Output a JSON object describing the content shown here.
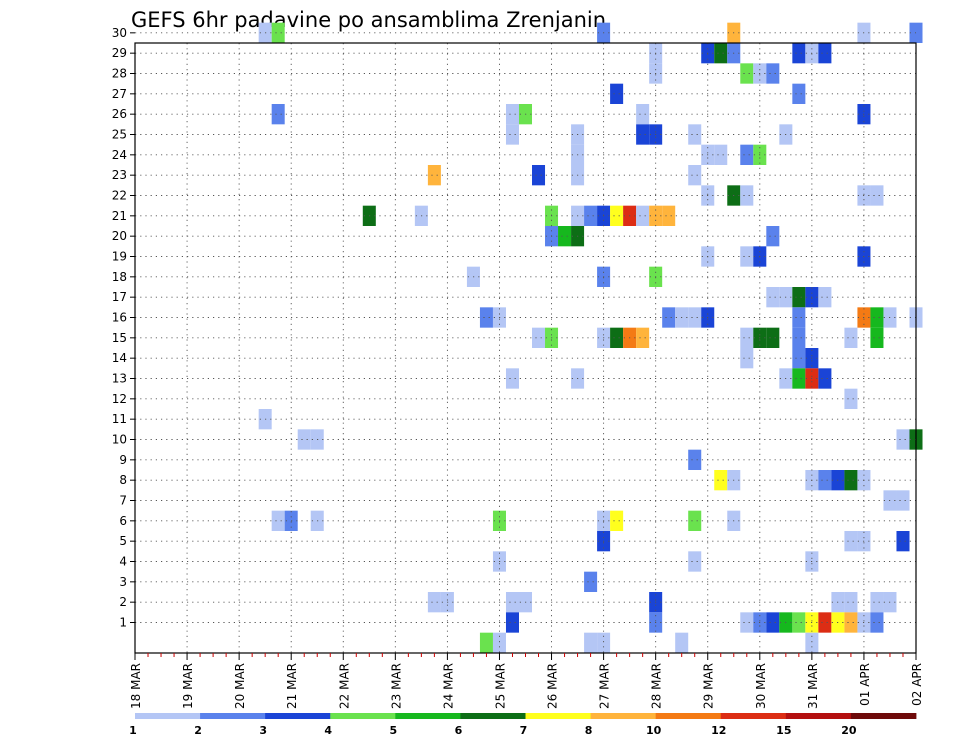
{
  "chart_data": {
    "type": "heatmap",
    "title": "GEFS 6hr padavine po ansamblima Zrenjanin",
    "xlabel": "",
    "ylabel": "",
    "x_ticks": [
      "18 MAR",
      "19 MAR",
      "20 MAR",
      "21 MAR",
      "22 MAR",
      "23 MAR",
      "24 MAR",
      "25 MAR",
      "26 MAR",
      "27 MAR",
      "28 MAR",
      "29 MAR",
      "30 MAR",
      "31 MAR",
      "01 APR",
      "02 APR"
    ],
    "y_ticks": [
      "1",
      "2",
      "3",
      "4",
      "5",
      "6",
      "7",
      "8",
      "9",
      "10",
      "11",
      "12",
      "13",
      "14",
      "15",
      "16",
      "17",
      "18",
      "19",
      "20",
      "21",
      "22",
      "23",
      "24",
      "25",
      "26",
      "27",
      "28",
      "29",
      "30"
    ],
    "time_step_hours": 6,
    "grid": true,
    "legend_placement": "bottom",
    "legend": {
      "labels": [
        "1",
        "2",
        "3",
        "4",
        "5",
        "6",
        "7",
        "8",
        "10",
        "12",
        "15",
        "20"
      ],
      "colors": [
        "#b4c6f5",
        "#5a82ec",
        "#1a44d6",
        "#6ae24e",
        "#16b81e",
        "#0d6e16",
        "#ffff1e",
        "#ffb43c",
        "#f47a14",
        "#dc2d14",
        "#b40f0f",
        "#6e0a0a"
      ]
    },
    "cells": [
      {
        "member": 30,
        "x": "20 MAR 12",
        "class": 0
      },
      {
        "member": 30,
        "x": "20 MAR 18",
        "class": 3
      },
      {
        "member": 30,
        "x": "27 MAR 00",
        "class": 1
      },
      {
        "member": 30,
        "x": "29 MAR 12",
        "class": 7
      },
      {
        "member": 30,
        "x": "01 APR 00",
        "class": 0
      },
      {
        "member": 30,
        "x": "02 APR 00",
        "class": 1
      },
      {
        "member": 29,
        "x": "28 MAR 00",
        "class": 0
      },
      {
        "member": 29,
        "x": "29 MAR 00",
        "class": 2
      },
      {
        "member": 29,
        "x": "29 MAR 06",
        "class": 5
      },
      {
        "member": 29,
        "x": "29 MAR 12",
        "class": 1
      },
      {
        "member": 29,
        "x": "30 MAR 18",
        "class": 2
      },
      {
        "member": 29,
        "x": "31 MAR 00",
        "class": 0
      },
      {
        "member": 29,
        "x": "31 MAR 06",
        "class": 2
      },
      {
        "member": 28,
        "x": "28 MAR 00",
        "class": 0
      },
      {
        "member": 28,
        "x": "29 MAR 18",
        "class": 3
      },
      {
        "member": 28,
        "x": "30 MAR 00",
        "class": 0
      },
      {
        "member": 28,
        "x": "30 MAR 06",
        "class": 1
      },
      {
        "member": 27,
        "x": "27 MAR 06",
        "class": 2
      },
      {
        "member": 27,
        "x": "30 MAR 18",
        "class": 1
      },
      {
        "member": 26,
        "x": "20 MAR 18",
        "class": 1
      },
      {
        "member": 26,
        "x": "25 MAR 06",
        "class": 0
      },
      {
        "member": 26,
        "x": "25 MAR 12",
        "class": 3
      },
      {
        "member": 26,
        "x": "27 MAR 18",
        "class": 0
      },
      {
        "member": 26,
        "x": "01 APR 00",
        "class": 2
      },
      {
        "member": 25,
        "x": "25 MAR 06",
        "class": 0
      },
      {
        "member": 25,
        "x": "26 MAR 12",
        "class": 0
      },
      {
        "member": 25,
        "x": "27 MAR 18",
        "class": 2
      },
      {
        "member": 25,
        "x": "28 MAR 00",
        "class": 2
      },
      {
        "member": 25,
        "x": "28 MAR 18",
        "class": 0
      },
      {
        "member": 25,
        "x": "30 MAR 12",
        "class": 0
      },
      {
        "member": 24,
        "x": "26 MAR 12",
        "class": 0
      },
      {
        "member": 24,
        "x": "29 MAR 00",
        "class": 0
      },
      {
        "member": 24,
        "x": "29 MAR 06",
        "class": 0
      },
      {
        "member": 24,
        "x": "29 MAR 18",
        "class": 1
      },
      {
        "member": 24,
        "x": "30 MAR 00",
        "class": 3
      },
      {
        "member": 23,
        "x": "23 MAR 18",
        "class": 7
      },
      {
        "member": 23,
        "x": "25 MAR 18",
        "class": 2
      },
      {
        "member": 23,
        "x": "26 MAR 12",
        "class": 0
      },
      {
        "member": 23,
        "x": "28 MAR 18",
        "class": 0
      },
      {
        "member": 22,
        "x": "29 MAR 00",
        "class": 0
      },
      {
        "member": 22,
        "x": "29 MAR 12",
        "class": 5
      },
      {
        "member": 22,
        "x": "29 MAR 18",
        "class": 0
      },
      {
        "member": 22,
        "x": "01 APR 00",
        "class": 0
      },
      {
        "member": 22,
        "x": "01 APR 06",
        "class": 0
      },
      {
        "member": 21,
        "x": "22 MAR 12",
        "class": 5
      },
      {
        "member": 21,
        "x": "23 MAR 12",
        "class": 0
      },
      {
        "member": 21,
        "x": "26 MAR 00",
        "class": 3
      },
      {
        "member": 21,
        "x": "26 MAR 12",
        "class": 0
      },
      {
        "member": 21,
        "x": "26 MAR 18",
        "class": 1
      },
      {
        "member": 21,
        "x": "27 MAR 00",
        "class": 2
      },
      {
        "member": 21,
        "x": "27 MAR 06",
        "class": 6
      },
      {
        "member": 21,
        "x": "27 MAR 12",
        "class": 9
      },
      {
        "member": 21,
        "x": "27 MAR 18",
        "class": 0
      },
      {
        "member": 21,
        "x": "28 MAR 00",
        "class": 7
      },
      {
        "member": 21,
        "x": "28 MAR 06",
        "class": 7
      },
      {
        "member": 20,
        "x": "26 MAR 00",
        "class": 1
      },
      {
        "member": 20,
        "x": "26 MAR 06",
        "class": 4
      },
      {
        "member": 20,
        "x": "26 MAR 12",
        "class": 5
      },
      {
        "member": 20,
        "x": "30 MAR 06",
        "class": 1
      },
      {
        "member": 19,
        "x": "29 MAR 00",
        "class": 0
      },
      {
        "member": 19,
        "x": "29 MAR 18",
        "class": 0
      },
      {
        "member": 19,
        "x": "30 MAR 00",
        "class": 2
      },
      {
        "member": 19,
        "x": "01 APR 00",
        "class": 2
      },
      {
        "member": 18,
        "x": "24 MAR 12",
        "class": 0
      },
      {
        "member": 18,
        "x": "27 MAR 00",
        "class": 1
      },
      {
        "member": 18,
        "x": "28 MAR 00",
        "class": 3
      },
      {
        "member": 17,
        "x": "30 MAR 06",
        "class": 0
      },
      {
        "member": 17,
        "x": "30 MAR 12",
        "class": 0
      },
      {
        "member": 17,
        "x": "30 MAR 18",
        "class": 5
      },
      {
        "member": 17,
        "x": "31 MAR 00",
        "class": 2
      },
      {
        "member": 17,
        "x": "31 MAR 06",
        "class": 0
      },
      {
        "member": 16,
        "x": "24 MAR 18",
        "class": 1
      },
      {
        "member": 16,
        "x": "25 MAR 00",
        "class": 0
      },
      {
        "member": 16,
        "x": "28 MAR 06",
        "class": 1
      },
      {
        "member": 16,
        "x": "28 MAR 12",
        "class": 0
      },
      {
        "member": 16,
        "x": "28 MAR 18",
        "class": 0
      },
      {
        "member": 16,
        "x": "29 MAR 00",
        "class": 2
      },
      {
        "member": 16,
        "x": "30 MAR 18",
        "class": 1
      },
      {
        "member": 16,
        "x": "01 APR 00",
        "class": 8
      },
      {
        "member": 16,
        "x": "01 APR 06",
        "class": 4
      },
      {
        "member": 16,
        "x": "01 APR 12",
        "class": 0
      },
      {
        "member": 16,
        "x": "02 APR 00",
        "class": 0
      },
      {
        "member": 15,
        "x": "25 MAR 18",
        "class": 0
      },
      {
        "member": 15,
        "x": "26 MAR 00",
        "class": 3
      },
      {
        "member": 15,
        "x": "27 MAR 00",
        "class": 0
      },
      {
        "member": 15,
        "x": "27 MAR 06",
        "class": 5
      },
      {
        "member": 15,
        "x": "27 MAR 12",
        "class": 8
      },
      {
        "member": 15,
        "x": "27 MAR 18",
        "class": 7
      },
      {
        "member": 15,
        "x": "29 MAR 18",
        "class": 0
      },
      {
        "member": 15,
        "x": "30 MAR 00",
        "class": 5
      },
      {
        "member": 15,
        "x": "30 MAR 06",
        "class": 5
      },
      {
        "member": 15,
        "x": "30 MAR 18",
        "class": 1
      },
      {
        "member": 15,
        "x": "31 MAR 18",
        "class": 0
      },
      {
        "member": 15,
        "x": "01 APR 06",
        "class": 4
      },
      {
        "member": 14,
        "x": "29 MAR 18",
        "class": 0
      },
      {
        "member": 14,
        "x": "30 MAR 18",
        "class": 1
      },
      {
        "member": 14,
        "x": "31 MAR 00",
        "class": 2
      },
      {
        "member": 13,
        "x": "25 MAR 06",
        "class": 0
      },
      {
        "member": 13,
        "x": "26 MAR 12",
        "class": 0
      },
      {
        "member": 13,
        "x": "30 MAR 12",
        "class": 0
      },
      {
        "member": 13,
        "x": "30 MAR 18",
        "class": 4
      },
      {
        "member": 13,
        "x": "31 MAR 00",
        "class": 9
      },
      {
        "member": 13,
        "x": "31 MAR 06",
        "class": 2
      },
      {
        "member": 12,
        "x": "31 MAR 18",
        "class": 0
      },
      {
        "member": 11,
        "x": "20 MAR 12",
        "class": 0
      },
      {
        "member": 10,
        "x": "21 MAR 06",
        "class": 0
      },
      {
        "member": 10,
        "x": "21 MAR 12",
        "class": 0
      },
      {
        "member": 10,
        "x": "01 APR 18",
        "class": 0
      },
      {
        "member": 10,
        "x": "02 APR 00",
        "class": 5
      },
      {
        "member": 9,
        "x": "28 MAR 18",
        "class": 1
      },
      {
        "member": 8,
        "x": "29 MAR 06",
        "class": 6
      },
      {
        "member": 8,
        "x": "29 MAR 12",
        "class": 0
      },
      {
        "member": 8,
        "x": "31 MAR 00",
        "class": 0
      },
      {
        "member": 8,
        "x": "31 MAR 06",
        "class": 1
      },
      {
        "member": 8,
        "x": "31 MAR 12",
        "class": 2
      },
      {
        "member": 8,
        "x": "31 MAR 18",
        "class": 5
      },
      {
        "member": 8,
        "x": "01 APR 00",
        "class": 0
      },
      {
        "member": 7,
        "x": "01 APR 12",
        "class": 0
      },
      {
        "member": 7,
        "x": "01 APR 18",
        "class": 0
      },
      {
        "member": 6,
        "x": "20 MAR 18",
        "class": 0
      },
      {
        "member": 6,
        "x": "21 MAR 00",
        "class": 1
      },
      {
        "member": 6,
        "x": "21 MAR 12",
        "class": 0
      },
      {
        "member": 6,
        "x": "25 MAR 00",
        "class": 3
      },
      {
        "member": 6,
        "x": "27 MAR 00",
        "class": 0
      },
      {
        "member": 6,
        "x": "27 MAR 06",
        "class": 6
      },
      {
        "member": 6,
        "x": "28 MAR 18",
        "class": 3
      },
      {
        "member": 6,
        "x": "29 MAR 12",
        "class": 0
      },
      {
        "member": 5,
        "x": "27 MAR 00",
        "class": 2
      },
      {
        "member": 5,
        "x": "31 MAR 18",
        "class": 0
      },
      {
        "member": 5,
        "x": "01 APR 00",
        "class": 0
      },
      {
        "member": 5,
        "x": "01 APR 18",
        "class": 2
      },
      {
        "member": 4,
        "x": "25 MAR 00",
        "class": 0
      },
      {
        "member": 4,
        "x": "28 MAR 18",
        "class": 0
      },
      {
        "member": 4,
        "x": "31 MAR 00",
        "class": 0
      },
      {
        "member": 3,
        "x": "26 MAR 18",
        "class": 1
      },
      {
        "member": 2,
        "x": "23 MAR 18",
        "class": 0
      },
      {
        "member": 2,
        "x": "24 MAR 00",
        "class": 0
      },
      {
        "member": 2,
        "x": "25 MAR 06",
        "class": 0
      },
      {
        "member": 2,
        "x": "25 MAR 12",
        "class": 0
      },
      {
        "member": 2,
        "x": "28 MAR 00",
        "class": 2
      },
      {
        "member": 2,
        "x": "31 MAR 12",
        "class": 0
      },
      {
        "member": 2,
        "x": "31 MAR 18",
        "class": 0
      },
      {
        "member": 2,
        "x": "01 APR 06",
        "class": 0
      },
      {
        "member": 2,
        "x": "01 APR 12",
        "class": 0
      },
      {
        "member": 1,
        "x": "25 MAR 06",
        "class": 2
      },
      {
        "member": 1,
        "x": "28 MAR 00",
        "class": 1
      },
      {
        "member": 1,
        "x": "29 MAR 18",
        "class": 0
      },
      {
        "member": 1,
        "x": "30 MAR 00",
        "class": 1
      },
      {
        "member": 1,
        "x": "30 MAR 06",
        "class": 2
      },
      {
        "member": 1,
        "x": "30 MAR 12",
        "class": 4
      },
      {
        "member": 1,
        "x": "30 MAR 18",
        "class": 3
      },
      {
        "member": 1,
        "x": "31 MAR 00",
        "class": 6
      },
      {
        "member": 1,
        "x": "31 MAR 06",
        "class": 9
      },
      {
        "member": 1,
        "x": "31 MAR 12",
        "class": 6
      },
      {
        "member": 1,
        "x": "31 MAR 18",
        "class": 7
      },
      {
        "member": 1,
        "x": "01 APR 00",
        "class": 0
      },
      {
        "member": 1,
        "x": "01 APR 06",
        "class": 1
      },
      {
        "member": 0,
        "x": "24 MAR 18",
        "class": 3
      },
      {
        "member": 0,
        "x": "25 MAR 00",
        "class": 0
      },
      {
        "member": 0,
        "x": "26 MAR 18",
        "class": 0
      },
      {
        "member": 0,
        "x": "27 MAR 00",
        "class": 0
      },
      {
        "member": 0,
        "x": "28 MAR 12",
        "class": 0
      },
      {
        "member": 0,
        "x": "31 MAR 00",
        "class": 0
      }
    ]
  }
}
